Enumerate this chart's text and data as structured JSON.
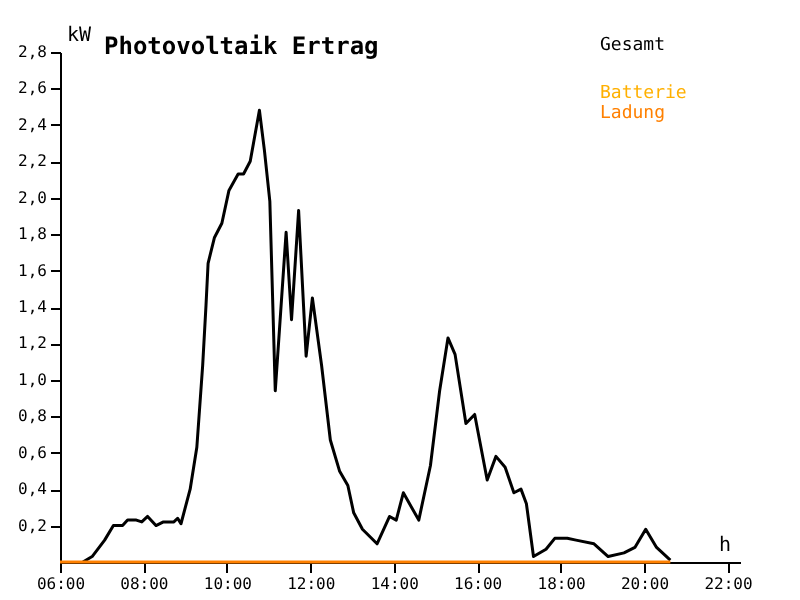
{
  "chart_data": {
    "type": "line",
    "title": "Photovoltaik Ertrag",
    "ylabel": "kW",
    "xlabel": "h",
    "xlim": [
      6,
      22.3
    ],
    "xticks": [
      {
        "value": 6,
        "label": "06:00"
      },
      {
        "value": 8,
        "label": "08:00"
      },
      {
        "value": 10,
        "label": "10:00"
      },
      {
        "value": 12,
        "label": "12:00"
      },
      {
        "value": 14,
        "label": "14:00"
      },
      {
        "value": 16,
        "label": "16:00"
      },
      {
        "value": 18,
        "label": "18:00"
      },
      {
        "value": 20,
        "label": "20:00"
      },
      {
        "value": 22,
        "label": "22:00"
      }
    ],
    "ylim": [
      0,
      2.8
    ],
    "yticks": [
      {
        "value": 0.2,
        "label": "0,2"
      },
      {
        "value": 0.4,
        "label": "0,4"
      },
      {
        "value": 0.6,
        "label": "0,6"
      },
      {
        "value": 0.8,
        "label": "0,8"
      },
      {
        "value": 1.0,
        "label": "1,0"
      },
      {
        "value": 1.2,
        "label": "1,2"
      },
      {
        "value": 1.4,
        "label": "1,4"
      },
      {
        "value": 1.6,
        "label": "1,6"
      },
      {
        "value": 1.8,
        "label": "1,8"
      },
      {
        "value": 2.0,
        "label": "2,0"
      },
      {
        "value": 2.2,
        "label": "2,2"
      },
      {
        "value": 2.4,
        "label": "2,4"
      },
      {
        "value": 2.6,
        "label": "2,6"
      },
      {
        "value": 2.8,
        "label": "2,8"
      }
    ],
    "grid": false,
    "legend": "top right",
    "marker": "none",
    "line_style": "solid",
    "series": [
      {
        "name": "Gesamt",
        "color": "#000000",
        "x": [
          6.55,
          6.77,
          7.07,
          7.28,
          7.5,
          7.62,
          7.83,
          7.96,
          8.1,
          8.3,
          8.48,
          8.73,
          8.82,
          8.9,
          9.12,
          9.28,
          9.42,
          9.5,
          9.55,
          9.7,
          9.88,
          10.05,
          10.27,
          10.4,
          10.56,
          10.78,
          10.9,
          11.03,
          11.16,
          11.42,
          11.55,
          11.72,
          11.9,
          12.05,
          12.27,
          12.48,
          12.7,
          12.9,
          13.04,
          13.25,
          13.6,
          13.9,
          14.06,
          14.23,
          14.6,
          14.88,
          15.1,
          15.3,
          15.47,
          15.73,
          15.94,
          16.24,
          16.45,
          16.67,
          16.88,
          17.05,
          17.18,
          17.35,
          17.65,
          17.86,
          18.16,
          18.37,
          18.8,
          19.14,
          19.52,
          19.78,
          20.04,
          20.3,
          20.63
        ],
        "values": [
          0,
          0.03,
          0.12,
          0.2,
          0.2,
          0.23,
          0.23,
          0.22,
          0.25,
          0.2,
          0.22,
          0.22,
          0.24,
          0.21,
          0.4,
          0.63,
          1.08,
          1.41,
          1.64,
          1.78,
          1.86,
          2.04,
          2.13,
          2.13,
          2.2,
          2.48,
          2.26,
          1.98,
          0.94,
          1.81,
          1.33,
          1.93,
          1.13,
          1.45,
          1.08,
          0.67,
          0.5,
          0.42,
          0.27,
          0.18,
          0.1,
          0.25,
          0.23,
          0.38,
          0.23,
          0.53,
          0.94,
          1.23,
          1.14,
          0.76,
          0.81,
          0.45,
          0.58,
          0.52,
          0.38,
          0.4,
          0.32,
          0.03,
          0.07,
          0.13,
          0.13,
          0.12,
          0.1,
          0.03,
          0.05,
          0.08,
          0.18,
          0.08,
          0.01
        ]
      },
      {
        "name": "Batterie",
        "color": "#ffb000",
        "values": [
          null
        ]
      },
      {
        "name": "Ladung",
        "color": "#ff8000",
        "x": [
          6,
          20.63
        ],
        "values": [
          0,
          0
        ]
      }
    ]
  }
}
